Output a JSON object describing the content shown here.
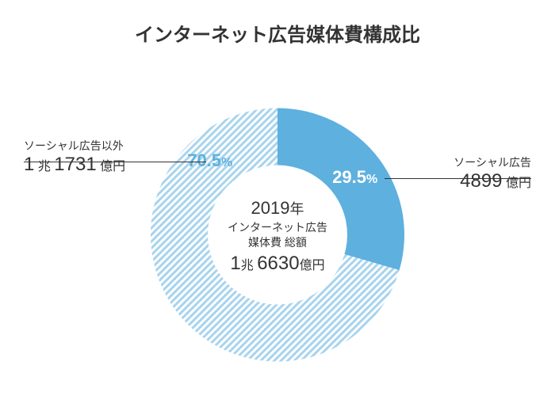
{
  "title": "インターネット広告媒体費構成比",
  "chart": {
    "type": "donut",
    "outer_radius": 160,
    "inner_radius": 88,
    "background_color": "#ffffff",
    "slices": [
      {
        "key": "social",
        "label": "ソーシャル広告",
        "value_display": {
          "big": "4899",
          "unit": "億円"
        },
        "percent": 29.5,
        "percent_display": "29.5",
        "fill": "#5eb0de",
        "text_color": "#ffffff"
      },
      {
        "key": "non_social",
        "label": "ソーシャル広告以外",
        "value_display": {
          "cho": "1",
          "cho_unit": "兆",
          "big": "1731",
          "unit": "億円"
        },
        "percent": 70.5,
        "percent_display": "70.5",
        "fill_pattern": "diagonal-hatch",
        "pattern_color": "#5eb0de",
        "pattern_bg": "#ffffff",
        "text_color": "#5eb0de"
      }
    ]
  },
  "center": {
    "year_num": "2019",
    "year_unit": "年",
    "line2a": "インターネット広告",
    "line2b": "媒体費  総額",
    "total_cho": "1",
    "total_cho_unit": "兆",
    "total_big": "6630",
    "total_unit": "億円"
  },
  "typography": {
    "title_fontsize": 24,
    "percent_fontsize": 22,
    "callout_name_fontsize": 14,
    "callout_value_fontsize": 24
  }
}
